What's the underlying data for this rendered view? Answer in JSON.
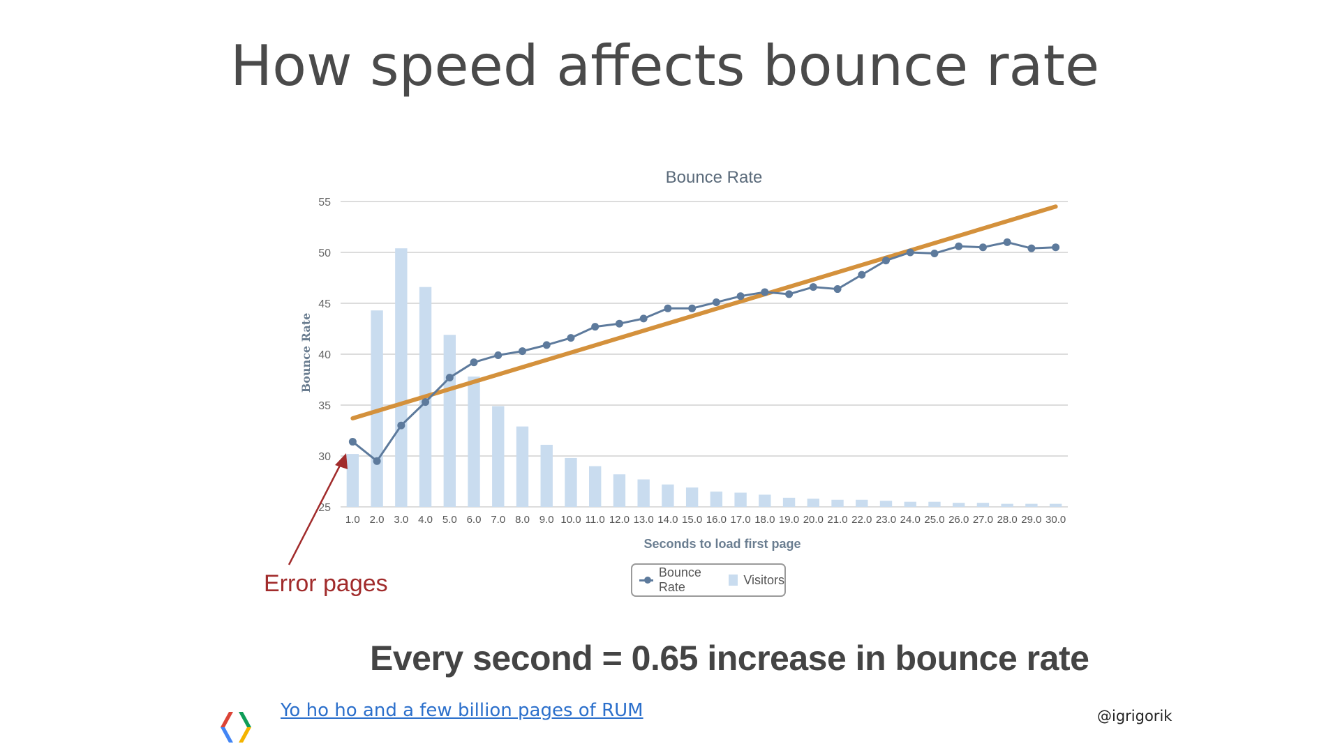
{
  "slide": {
    "title": "How speed affects bounce rate",
    "callout": "Error pages",
    "summary": "Every second = 0.65 increase in bounce rate",
    "footer_link": "Yo ho ho and a few billion pages of RUM",
    "handle": "@igrigorik",
    "logo_icon": "chrome-developers-logo-icon"
  },
  "chart_data": {
    "type": "bar",
    "title": "Bounce Rate",
    "xlabel": "Seconds to load first page",
    "ylabel": "Bounce Rate",
    "ylim": [
      25,
      55
    ],
    "yticks": [
      25,
      30,
      35,
      40,
      45,
      50,
      55
    ],
    "grid": true,
    "legend_position": "bottom-center",
    "categories": [
      "1.0",
      "2.0",
      "3.0",
      "4.0",
      "5.0",
      "6.0",
      "7.0",
      "8.0",
      "9.0",
      "10.0",
      "11.0",
      "12.0",
      "13.0",
      "14.0",
      "15.0",
      "16.0",
      "17.0",
      "18.0",
      "19.0",
      "20.0",
      "21.0",
      "22.0",
      "23.0",
      "24.0",
      "25.0",
      "26.0",
      "27.0",
      "28.0",
      "29.0",
      "30.0"
    ],
    "series": [
      {
        "name": "Bounce Rate",
        "type": "line",
        "color": "#5d7a9c",
        "values": [
          31.4,
          29.5,
          33.0,
          35.3,
          37.7,
          39.2,
          39.9,
          40.3,
          40.9,
          41.6,
          42.7,
          43.0,
          43.5,
          44.5,
          44.5,
          45.1,
          45.7,
          46.1,
          45.9,
          46.6,
          46.4,
          47.8,
          49.2,
          50.0,
          49.9,
          50.6,
          50.5,
          51.0,
          50.4,
          50.5
        ]
      },
      {
        "name": "Visitors",
        "type": "bar",
        "color": "#c9dcef",
        "values": [
          30.2,
          44.3,
          50.4,
          46.6,
          41.9,
          37.8,
          34.9,
          32.9,
          31.1,
          29.8,
          29.0,
          28.2,
          27.7,
          27.2,
          26.9,
          26.5,
          26.4,
          26.2,
          25.9,
          25.8,
          25.7,
          25.7,
          25.6,
          25.5,
          25.5,
          25.4,
          25.4,
          25.3,
          25.3,
          25.3
        ]
      }
    ],
    "trendline": {
      "color": "#d4913c",
      "start": [
        1.0,
        33.7
      ],
      "end": [
        30.0,
        54.5
      ]
    },
    "annotation": {
      "text": "Error pages",
      "target": [
        "1.0",
        30.2
      ],
      "color": "#a12b2b"
    }
  }
}
